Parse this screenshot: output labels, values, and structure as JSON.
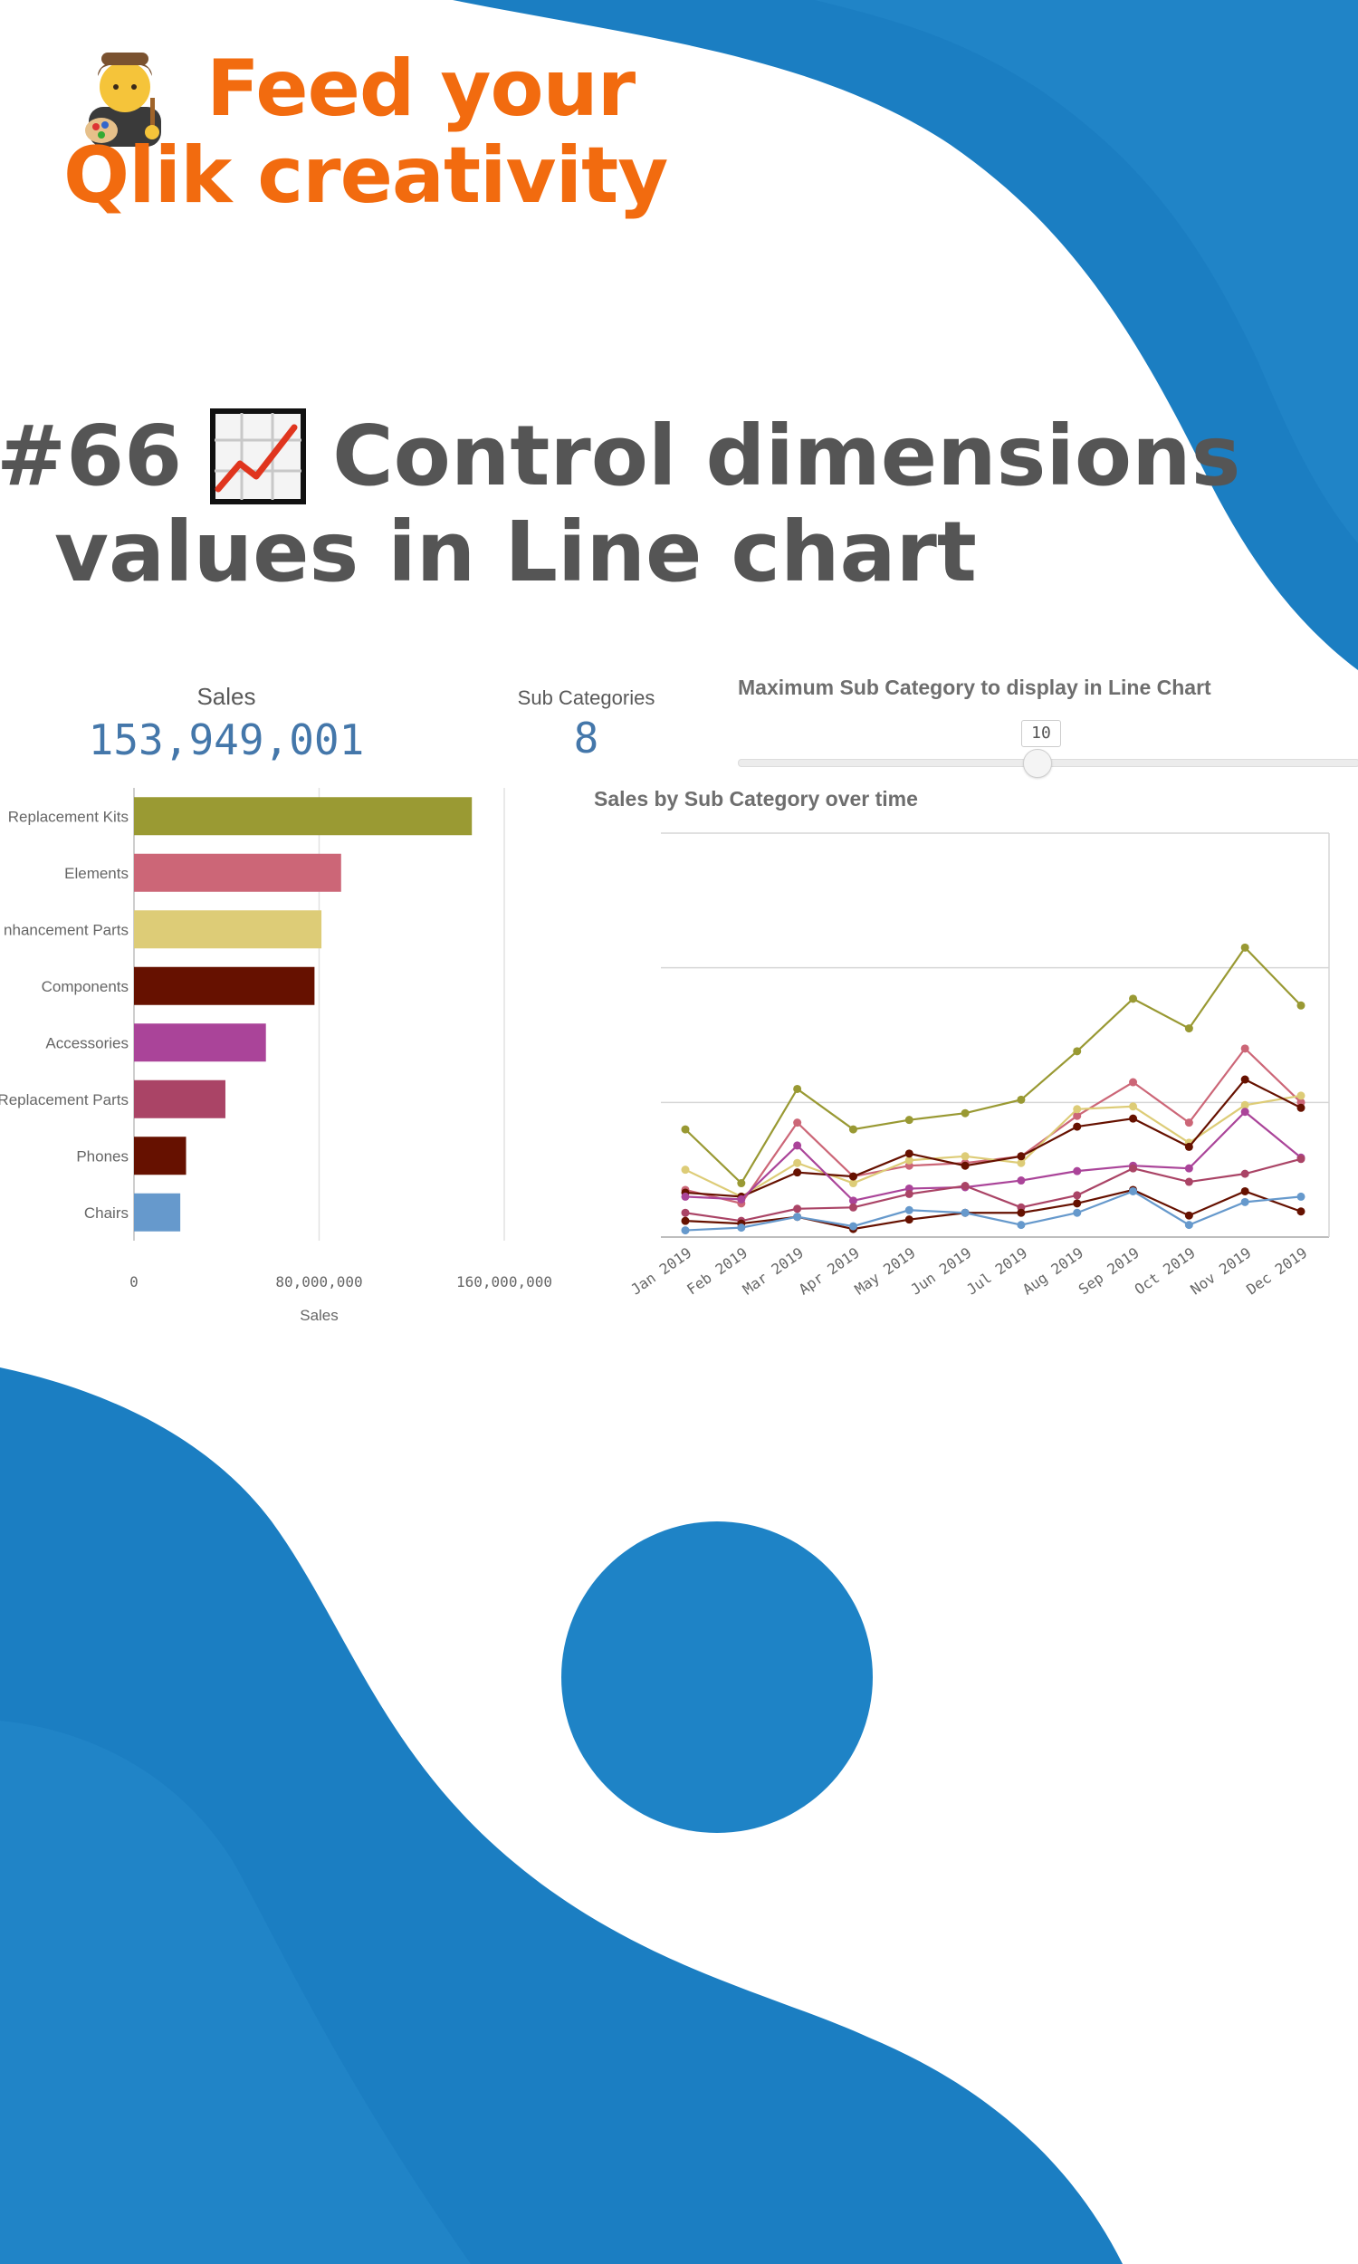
{
  "header": {
    "title_line1": "Feed your",
    "title_line2": "Qlik creativity",
    "emoji_icon": "artist-icon"
  },
  "post": {
    "number": "#66",
    "chart_icon": "chart-increasing-icon",
    "title_line1": "Control dimensions",
    "title_line2": "values in Line chart"
  },
  "kpis": {
    "sales_label": "Sales",
    "sales_value": "153,949,001",
    "subcat_label": "Sub Categories",
    "subcat_value": "8"
  },
  "slider": {
    "title": "Maximum Sub Category to display in Line Chart",
    "value": "10",
    "min": 1,
    "max": 20,
    "current": 10
  },
  "line_chart_title": "Sales by Sub Category over time",
  "colors": {
    "accent_orange": "#f26b0f",
    "blue_shape": "#1b7ec2",
    "title_gray": "#555555",
    "kpi_blue": "#4477aa"
  },
  "chart_data": [
    {
      "type": "bar",
      "orientation": "horizontal",
      "categories": [
        "Replacement Kits",
        "Elements",
        "nhancement Parts",
        "Components",
        "Accessories",
        "Replacement Parts",
        "Phones",
        "Chairs"
      ],
      "values": [
        146000000,
        89500000,
        81000000,
        78000000,
        57000000,
        39500000,
        22500000,
        20000000
      ],
      "colors": [
        "#9a9a33",
        "#cc6677",
        "#ddcc77",
        "#661100",
        "#aa4499",
        "#aa4466",
        "#661100",
        "#6699cc"
      ],
      "xlabel": "Sales",
      "xticks": [
        "0",
        "80,000,000",
        "160,000,000"
      ],
      "xlim": [
        0,
        160000000
      ],
      "grid": true
    },
    {
      "type": "line",
      "title": "Sales by Sub Category over time",
      "categories": [
        "Jan 2019",
        "Feb 2019",
        "Mar 2019",
        "Apr 2019",
        "May 2019",
        "Jun 2019",
        "Jul 2019",
        "Aug 2019",
        "Sep 2019",
        "Oct 2019",
        "Nov 2019",
        "Dec 2019"
      ],
      "ylim": [
        0,
        3
      ],
      "grid": true,
      "series": [
        {
          "color": "#999933",
          "values": [
            0.8,
            0.4,
            1.1,
            0.8,
            0.87,
            0.92,
            1.02,
            1.38,
            1.77,
            1.55,
            2.15,
            1.72
          ]
        },
        {
          "color": "#cc6677",
          "values": [
            0.35,
            0.25,
            0.85,
            0.45,
            0.53,
            0.55,
            0.6,
            0.9,
            1.15,
            0.85,
            1.4,
            1.0
          ]
        },
        {
          "color": "#ddcc77",
          "values": [
            0.5,
            0.3,
            0.55,
            0.4,
            0.57,
            0.6,
            0.55,
            0.95,
            0.97,
            0.7,
            0.98,
            1.05
          ]
        },
        {
          "color": "#661100",
          "values": [
            0.33,
            0.3,
            0.48,
            0.45,
            0.62,
            0.53,
            0.6,
            0.82,
            0.88,
            0.67,
            1.17,
            0.96
          ]
        },
        {
          "color": "#aa4499",
          "values": [
            0.3,
            0.28,
            0.68,
            0.27,
            0.36,
            0.37,
            0.42,
            0.49,
            0.53,
            0.51,
            0.93,
            0.59
          ]
        },
        {
          "color": "#aa4466",
          "values": [
            0.18,
            0.12,
            0.21,
            0.22,
            0.32,
            0.38,
            0.22,
            0.31,
            0.51,
            0.41,
            0.47,
            0.58
          ]
        },
        {
          "color": "#661100",
          "values": [
            0.12,
            0.1,
            0.15,
            0.06,
            0.13,
            0.18,
            0.18,
            0.25,
            0.35,
            0.16,
            0.34,
            0.19
          ]
        },
        {
          "color": "#6699cc",
          "values": [
            0.05,
            0.07,
            0.15,
            0.08,
            0.2,
            0.18,
            0.09,
            0.18,
            0.34,
            0.09,
            0.26,
            0.3
          ]
        }
      ]
    }
  ]
}
